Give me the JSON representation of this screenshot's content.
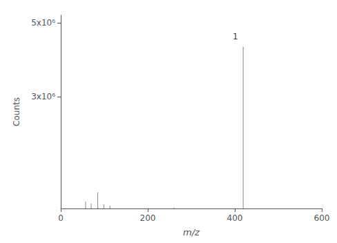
{
  "chart_data": {
    "type": "stem",
    "xlabel": "m/z",
    "ylabel": "Counts",
    "x": [
      57,
      70,
      85,
      99,
      113,
      260,
      419.3
    ],
    "values": [
      185000,
      130000,
      430000,
      115000,
      75000,
      28000,
      4350000
    ],
    "color": "#888888",
    "xlim": [
      0,
      600
    ],
    "ylim": [
      0,
      5200000
    ],
    "xticks": [
      0,
      200,
      400,
      600
    ],
    "yticks": [
      {
        "value": 3000000,
        "label": "3x10⁶"
      },
      {
        "value": 5000000,
        "label": "5x10⁶"
      }
    ],
    "grid": false,
    "annotations": [
      {
        "text": "1",
        "x": 401.3,
        "y": 4470000
      }
    ]
  }
}
